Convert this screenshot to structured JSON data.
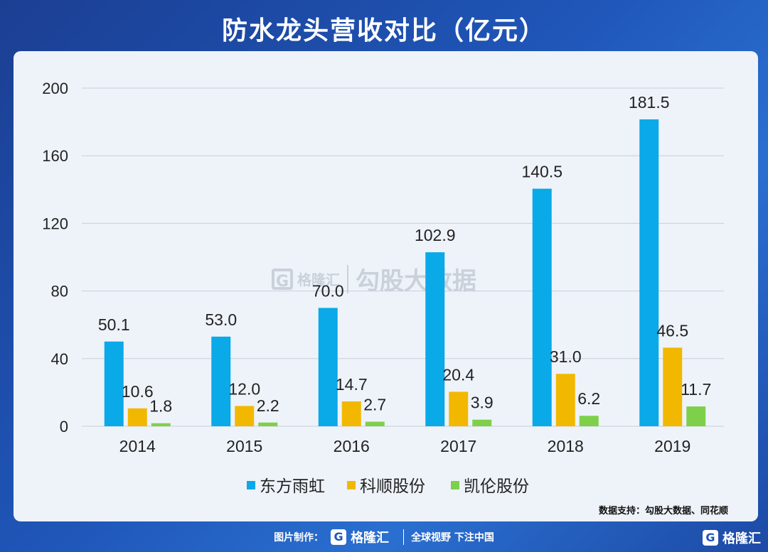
{
  "title": "防水龙头营收对比（亿元）",
  "source": "数据支持：勾股大数据、同花顺",
  "watermark": {
    "logo": "G",
    "brand": "格隆汇",
    "sub": "勾股大数据"
  },
  "footer": {
    "prefix": "图片制作：",
    "logo": "G",
    "brand": "格隆汇",
    "slogan": "全球视野 下注中国"
  },
  "corner": {
    "logo": "G",
    "brand": "格隆汇"
  },
  "colors": {
    "series1": "#0aa9e8",
    "series2": "#f2b800",
    "series3": "#7ed04b"
  },
  "chart_data": {
    "type": "bar",
    "title": "防水龙头营收对比（亿元）",
    "categories": [
      "2014",
      "2015",
      "2016",
      "2017",
      "2018",
      "2019"
    ],
    "ylim": [
      0,
      200
    ],
    "yticks": [
      "0",
      "40",
      "80",
      "120",
      "160",
      "200"
    ],
    "grid": true,
    "legend_position": "bottom",
    "series": [
      {
        "name": "东方雨虹",
        "values": [
          50.1,
          53.0,
          70.0,
          102.9,
          140.5,
          181.5
        ],
        "labels": [
          "50.1",
          "53.0",
          "70.0",
          "102.9",
          "140.5",
          "181.5"
        ]
      },
      {
        "name": "科顺股份",
        "values": [
          10.6,
          12.0,
          14.7,
          20.4,
          31.0,
          46.5
        ],
        "labels": [
          "10.6",
          "12.0",
          "14.7",
          "20.4",
          "31.0",
          "46.5"
        ]
      },
      {
        "name": "凯伦股份",
        "values": [
          1.8,
          2.2,
          2.7,
          3.9,
          6.2,
          11.7
        ],
        "labels": [
          "1.8",
          "2.2",
          "2.7",
          "3.9",
          "6.2",
          "11.7"
        ]
      }
    ]
  }
}
